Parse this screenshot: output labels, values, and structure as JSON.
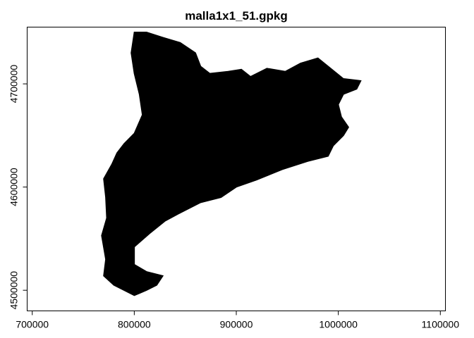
{
  "chart_data": {
    "type": "map",
    "title": "malla1x1_51.gpkg",
    "xlim": [
      695000,
      1105000
    ],
    "ylim": [
      4480000,
      4755000
    ],
    "x_ticks": [
      700000,
      800000,
      900000,
      1000000,
      1100000
    ],
    "y_ticks": [
      4500000,
      4600000,
      4700000
    ],
    "x_tick_labels": [
      "700000",
      "800000",
      "900000",
      "1000000",
      "1100000"
    ],
    "y_tick_labels": [
      "4500000",
      "4600000",
      "4700000"
    ],
    "fill_color": "#000000",
    "grid_color": "#ffffff",
    "outline": [
      [
        800000,
        4750000
      ],
      [
        812000,
        4750000
      ],
      [
        828000,
        4745000
      ],
      [
        845000,
        4740000
      ],
      [
        860000,
        4730000
      ],
      [
        865000,
        4717000
      ],
      [
        874000,
        4710000
      ],
      [
        892000,
        4712000
      ],
      [
        905000,
        4714000
      ],
      [
        914000,
        4707000
      ],
      [
        930000,
        4715000
      ],
      [
        948000,
        4712000
      ],
      [
        963000,
        4720000
      ],
      [
        980000,
        4725000
      ],
      [
        990000,
        4717000
      ],
      [
        1005000,
        4705000
      ],
      [
        1022000,
        4703000
      ],
      [
        1018000,
        4695000
      ],
      [
        1005000,
        4690000
      ],
      [
        1000000,
        4680000
      ],
      [
        1003000,
        4668000
      ],
      [
        1010000,
        4658000
      ],
      [
        1005000,
        4650000
      ],
      [
        995000,
        4640000
      ],
      [
        990000,
        4630000
      ],
      [
        970000,
        4625000
      ],
      [
        945000,
        4617000
      ],
      [
        920000,
        4607000
      ],
      [
        900000,
        4600000
      ],
      [
        885000,
        4590000
      ],
      [
        865000,
        4585000
      ],
      [
        845000,
        4575000
      ],
      [
        830000,
        4567000
      ],
      [
        815000,
        4555000
      ],
      [
        800000,
        4542000
      ],
      [
        800000,
        4525000
      ],
      [
        812000,
        4518000
      ],
      [
        828000,
        4514000
      ],
      [
        822000,
        4505000
      ],
      [
        812000,
        4500000
      ],
      [
        805000,
        4497000
      ],
      [
        800000,
        4495000
      ],
      [
        790000,
        4500000
      ],
      [
        780000,
        4505000
      ],
      [
        770000,
        4514000
      ],
      [
        772000,
        4530000
      ],
      [
        768000,
        4553000
      ],
      [
        773000,
        4570000
      ],
      [
        772000,
        4590000
      ],
      [
        770000,
        4608000
      ],
      [
        778000,
        4622000
      ],
      [
        783000,
        4633000
      ],
      [
        790000,
        4642000
      ],
      [
        800000,
        4652000
      ],
      [
        808000,
        4670000
      ],
      [
        805000,
        4690000
      ],
      [
        800000,
        4710000
      ],
      [
        797000,
        4730000
      ],
      [
        800000,
        4750000
      ]
    ]
  }
}
